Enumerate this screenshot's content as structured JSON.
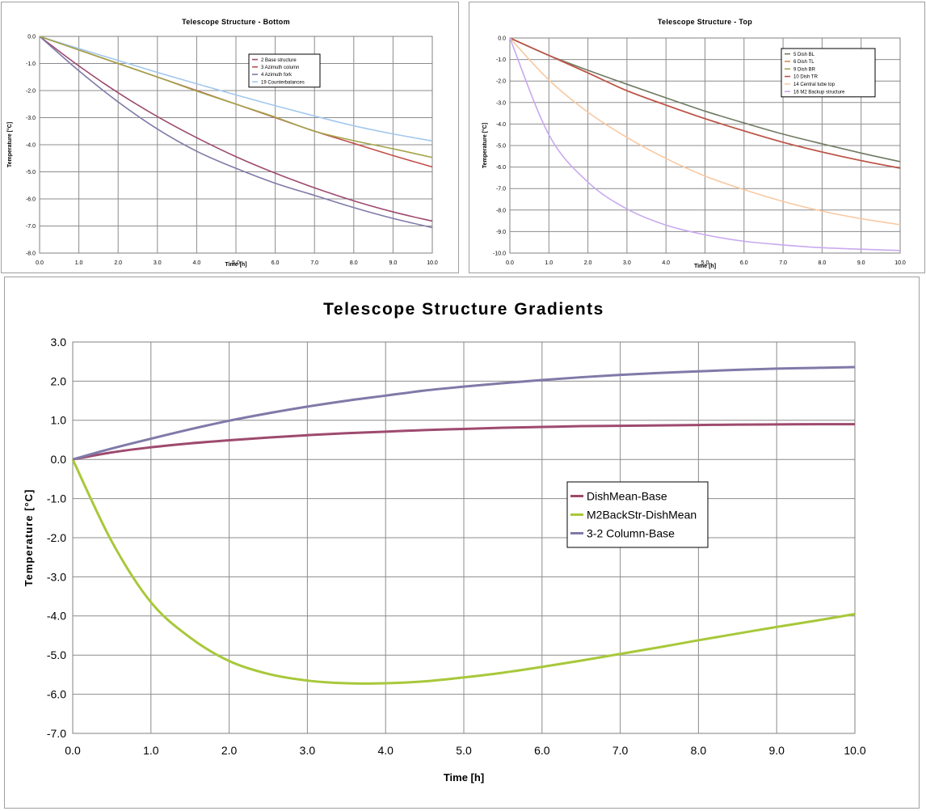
{
  "chart_data": [
    {
      "type": "line",
      "title": "Telescope Structure - Bottom",
      "xlabel": "Time [h]",
      "ylabel": "Temperature [°C]",
      "xlim": [
        0,
        10
      ],
      "ylim": [
        -8,
        0
      ],
      "grid": true,
      "legend_position": "top-right",
      "x_ticks": [
        "0.0",
        "1.0",
        "2.0",
        "3.0",
        "4.0",
        "5.0",
        "6.0",
        "7.0",
        "8.0",
        "9.0",
        "10.0"
      ],
      "y_ticks": [
        "0.0",
        "-1.0",
        "-2.0",
        "-3.0",
        "-4.0",
        "-5.0",
        "-6.0",
        "-7.0",
        "-8.0"
      ],
      "x": [
        0,
        1,
        2,
        3,
        4,
        5,
        6,
        7,
        8,
        9,
        10
      ],
      "series": [
        {
          "name": "2 Base structure",
          "color": "#9e4a6e",
          "values": [
            0,
            -1.09,
            -2.08,
            -2.96,
            -3.74,
            -4.44,
            -5.05,
            -5.59,
            -6.07,
            -6.48,
            -6.82
          ]
        },
        {
          "name": "3 Azimuth column",
          "color": "#c0504d",
          "values": [
            0,
            -0.5,
            -1.0,
            -1.5,
            -2.0,
            -2.5,
            -3.0,
            -3.5,
            -3.95,
            -4.4,
            -4.82
          ]
        },
        {
          "name": "4 Azimuth fork",
          "color": "#7f7aa8",
          "values": [
            0,
            -1.27,
            -2.42,
            -3.42,
            -4.24,
            -4.87,
            -5.42,
            -5.87,
            -6.32,
            -6.72,
            -7.06
          ]
        },
        {
          "name": "19 Counterbalances",
          "color": "#a3c8ee",
          "values": [
            0,
            -0.45,
            -0.89,
            -1.33,
            -1.75,
            -2.16,
            -2.56,
            -2.94,
            -3.3,
            -3.6,
            -3.86
          ]
        },
        {
          "name": "",
          "color": "#a3a34a",
          "values": [
            0,
            -0.5,
            -1.0,
            -1.5,
            -2.02,
            -2.5,
            -2.98,
            -3.5,
            -3.85,
            -4.15,
            -4.47
          ]
        }
      ]
    },
    {
      "type": "line",
      "title": "Telescope Structure - Top",
      "xlabel": "Time [h]",
      "ylabel": "Temperature [°C]",
      "xlim": [
        0,
        10
      ],
      "ylim": [
        -10,
        0
      ],
      "grid": true,
      "legend_position": "top-right",
      "x_ticks": [
        "0.0",
        "1.0",
        "2.0",
        "3.0",
        "4.0",
        "5.0",
        "6.0",
        "7.0",
        "8.0",
        "9.0",
        "10.0"
      ],
      "y_ticks": [
        "0.0",
        "-1.0",
        "-2.0",
        "-3.0",
        "-4.0",
        "-5.0",
        "-6.0",
        "-7.0",
        "-8.0",
        "-9.0",
        "-10.0"
      ],
      "x": [
        0,
        1,
        2,
        3,
        4,
        5,
        6,
        7,
        8,
        9,
        10
      ],
      "series": [
        {
          "name": "5 Dish BL",
          "color": "#6f7a62",
          "values": [
            0,
            -0.81,
            -1.5,
            -2.15,
            -2.78,
            -3.4,
            -3.95,
            -4.47,
            -4.92,
            -5.35,
            -5.75
          ]
        },
        {
          "name": "6 Dish TL",
          "color": "#d98a4a",
          "values": [
            0,
            -0.81,
            -1.62,
            -2.45,
            -3.12,
            -3.75,
            -4.32,
            -4.85,
            -5.3,
            -5.7,
            -6.05
          ]
        },
        {
          "name": "9 Dish BR",
          "color": "#a3a34a",
          "values": [
            0,
            -0.81,
            -1.62,
            -2.45,
            -3.12,
            -3.75,
            -4.32,
            -4.85,
            -5.3,
            -5.7,
            -6.05
          ]
        },
        {
          "name": "10 Dish TR",
          "color": "#c0504d",
          "values": [
            0,
            -0.81,
            -1.62,
            -2.45,
            -3.12,
            -3.75,
            -4.32,
            -4.85,
            -5.3,
            -5.7,
            -6.05
          ]
        },
        {
          "name": "14 Central tube top",
          "color": "#f8c9a2",
          "values": [
            0,
            -1.95,
            -3.45,
            -4.62,
            -5.6,
            -6.42,
            -7.05,
            -7.6,
            -8.05,
            -8.4,
            -8.68
          ]
        },
        {
          "name": "16 M2 Backup structure",
          "color": "#c9a9ee",
          "values": [
            0,
            -4.5,
            -6.7,
            -7.95,
            -8.7,
            -9.15,
            -9.45,
            -9.62,
            -9.75,
            -9.82,
            -9.88
          ]
        }
      ]
    },
    {
      "type": "line",
      "title": "Telescope Structure Gradients",
      "xlabel": "Time [h]",
      "ylabel": "Temperature [°C]",
      "xlim": [
        0,
        10
      ],
      "ylim": [
        -7,
        3
      ],
      "grid": true,
      "legend_position": "center-right",
      "x_ticks": [
        "0.0",
        "1.0",
        "2.0",
        "3.0",
        "4.0",
        "5.0",
        "6.0",
        "7.0",
        "8.0",
        "9.0",
        "10.0"
      ],
      "y_ticks": [
        "3.0",
        "2.0",
        "1.0",
        "0.0",
        "-1.0",
        "-2.0",
        "-3.0",
        "-4.0",
        "-5.0",
        "-6.0",
        "-7.0"
      ],
      "x": [
        0,
        0.5,
        1,
        1.5,
        2,
        2.5,
        3,
        3.5,
        4,
        4.5,
        5,
        5.5,
        6,
        6.5,
        7,
        7.5,
        8,
        8.5,
        9,
        9.5,
        10
      ],
      "series": [
        {
          "name": "DishMean-Base",
          "color": "#9e4a6e",
          "values": [
            0,
            0.18,
            0.31,
            0.41,
            0.49,
            0.56,
            0.62,
            0.67,
            0.71,
            0.75,
            0.78,
            0.81,
            0.83,
            0.85,
            0.86,
            0.87,
            0.88,
            0.89,
            0.895,
            0.9,
            0.9
          ]
        },
        {
          "name": "M2BackStr-DishMean",
          "color": "#a8c83a",
          "values": [
            0,
            -2.1,
            -3.65,
            -4.55,
            -5.15,
            -5.48,
            -5.65,
            -5.72,
            -5.72,
            -5.67,
            -5.57,
            -5.45,
            -5.3,
            -5.14,
            -4.97,
            -4.8,
            -4.62,
            -4.45,
            -4.28,
            -4.12,
            -3.95
          ]
        },
        {
          "name": "3-2 Column-Base",
          "color": "#7f7aa8",
          "values": [
            0,
            0.28,
            0.53,
            0.77,
            0.99,
            1.18,
            1.35,
            1.5,
            1.63,
            1.76,
            1.86,
            1.95,
            2.03,
            2.1,
            2.16,
            2.21,
            2.25,
            2.29,
            2.32,
            2.34,
            2.36
          ]
        }
      ]
    }
  ]
}
